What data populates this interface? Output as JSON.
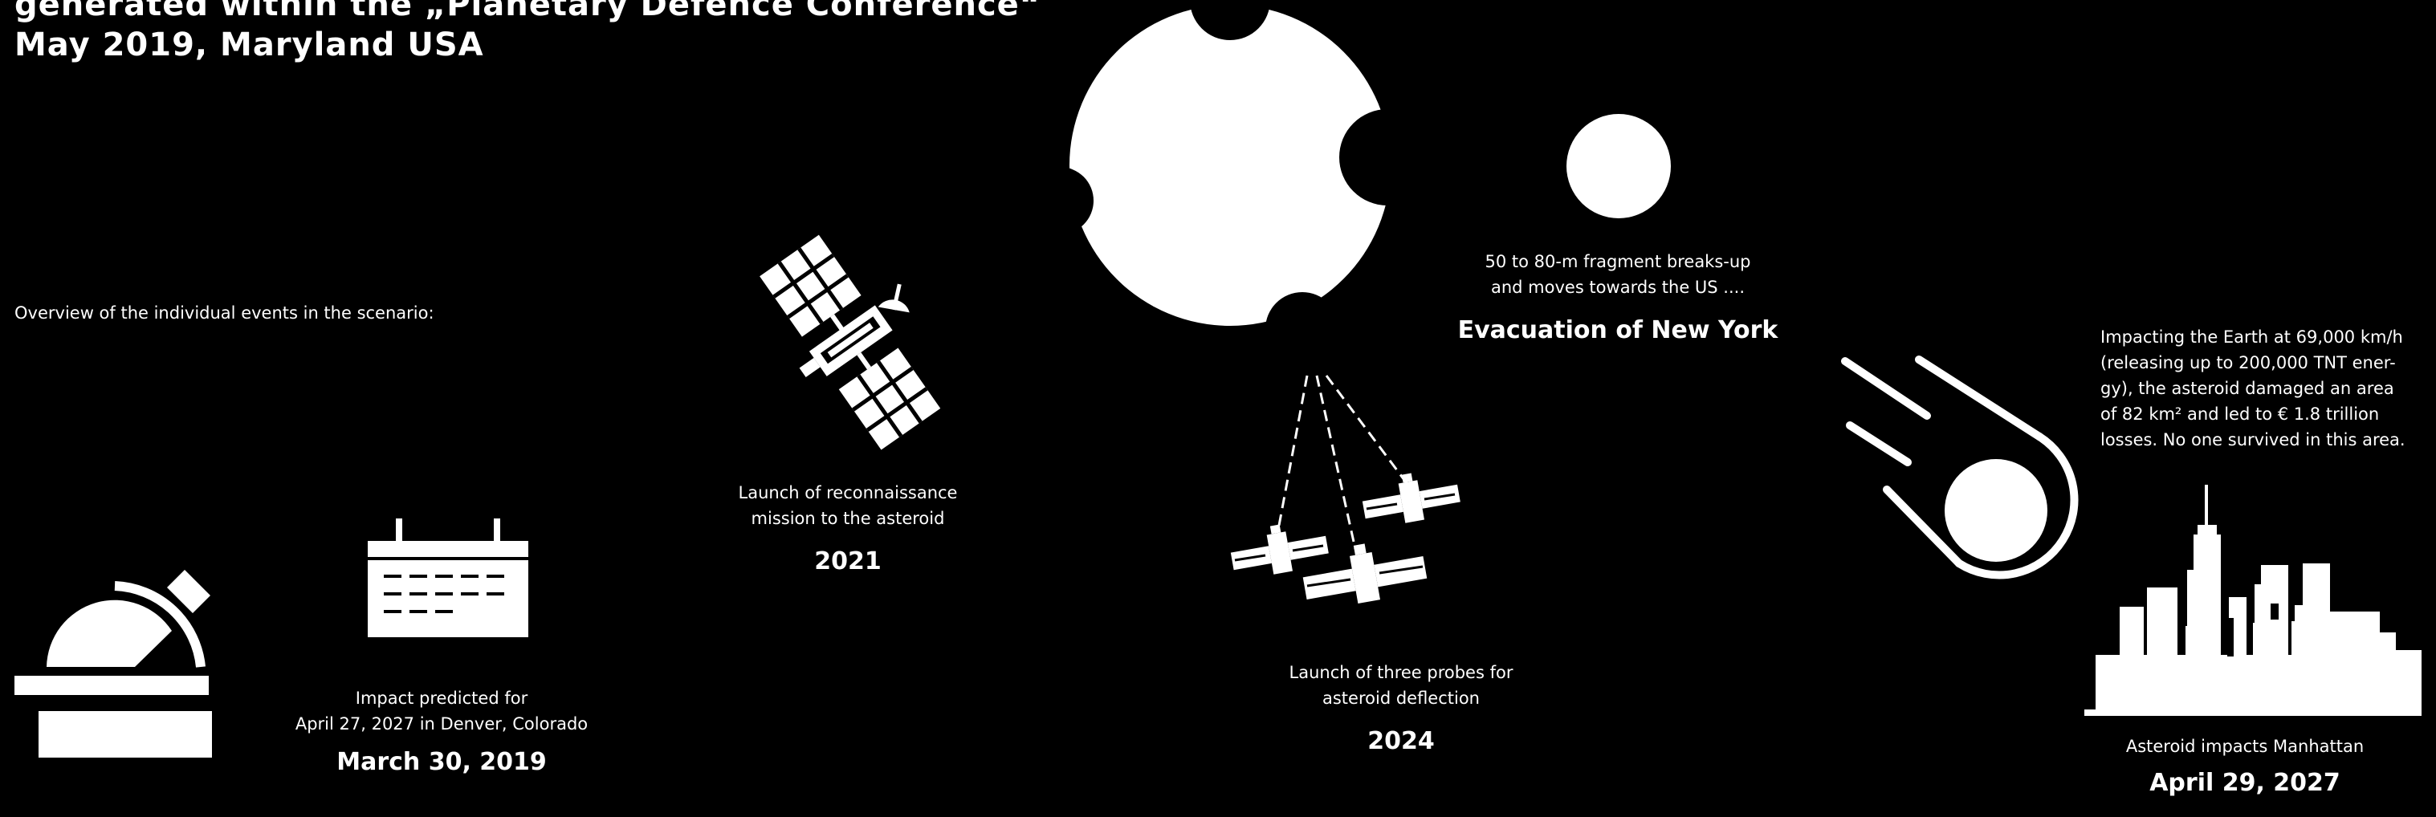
{
  "header": {
    "line1": "generated within the „Planetary Defence Conference“",
    "line2": "May 2019, Maryland USA"
  },
  "intro": "Overview of the individual events in the scenario:",
  "events": {
    "prediction": {
      "caption_line1": "Impact predicted for",
      "caption_line2": "April 27, 2027 in Denver, Colorado",
      "date": "March 30, 2019"
    },
    "reconnaissance": {
      "caption_line1": "Launch of reconnaissance",
      "caption_line2": "mission to the asteroid",
      "date": "2021"
    },
    "probes": {
      "caption_line1": "Launch of three probes for",
      "caption_line2": "asteroid deflection",
      "date": "2024"
    },
    "fragment": {
      "caption_line1": "50 to 80-m fragment breaks-up",
      "caption_line2": "and moves towards the US ....",
      "headline": "Evacuation of New York"
    },
    "impact": {
      "text_line1": "Impacting the Earth at 69,000 km/h",
      "text_line2": "(releasing up to 200,000 TNT ener-",
      "text_line3": "gy), the asteroid damaged an area",
      "text_line4": "of 82 km² and led to € 1.8 trillion",
      "text_line5": "losses. No one survived in this area.",
      "caption": "Asteroid impacts Manhattan",
      "date": "April 29, 2027"
    }
  },
  "icons": {
    "observatory": "observatory-icon",
    "calendar": "calendar-icon",
    "satellite": "satellite-icon",
    "asteroid": "asteroid-icon",
    "probes": "probe-satellites-icon",
    "fragment": "fragment-icon",
    "meteor": "meteor-icon",
    "skyline": "manhattan-skyline-icon"
  },
  "colors": {
    "background": "#000000",
    "foreground": "#ffffff"
  }
}
